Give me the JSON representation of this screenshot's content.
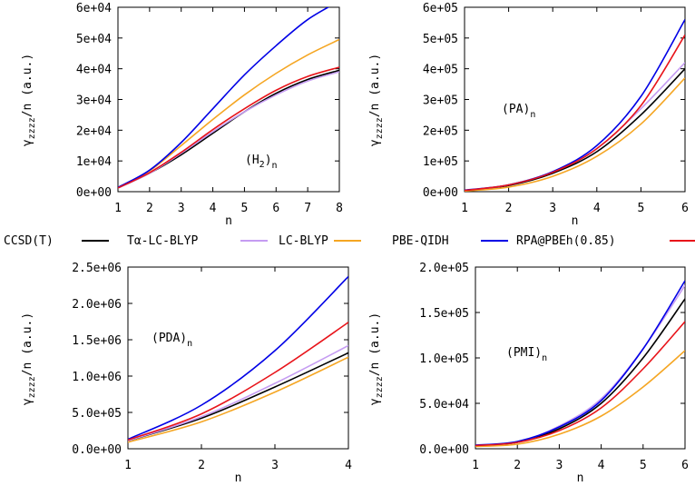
{
  "legend": [
    {
      "name": "CCSD(T)",
      "color": "#000000"
    },
    {
      "name": "Tα-LC-BLYP",
      "color": "#c59cf2"
    },
    {
      "name": "LC-BLYP",
      "color": "#f5a623"
    },
    {
      "name": "PBE-QIDH",
      "color": "#0000e6"
    },
    {
      "name": "RPA@PBEh(0.85)",
      "color": "#e8141a"
    }
  ],
  "chart_data": [
    {
      "type": "line",
      "label_main": "(H",
      "label_sub2": "2",
      "label_close": ")",
      "label_sub": "n",
      "xlabel": "n",
      "ylabel_main": "γ",
      "ylabel_sub": "zzzz",
      "ylabel_rest": "/n (a.u.)",
      "xlim": [
        1,
        8
      ],
      "ylim": [
        0,
        60000
      ],
      "xticks": [
        "1",
        "2",
        "3",
        "4",
        "5",
        "6",
        "7",
        "8"
      ],
      "yticks": [
        "0e+00",
        "1e+04",
        "2e+04",
        "3e+04",
        "4e+04",
        "5e+04",
        "6e+04"
      ],
      "x": [
        1,
        2,
        3,
        4,
        5,
        6,
        7,
        8
      ],
      "series": [
        {
          "name": "CCSD(T)",
          "color": "#000000",
          "values": [
            1200,
            6000,
            12000,
            19000,
            26000,
            32000,
            36500,
            39500
          ]
        },
        {
          "name": "Tα-LC-BLYP",
          "color": "#c59cf2",
          "values": [
            1200,
            6000,
            12500,
            19500,
            26000,
            31500,
            36000,
            39000
          ]
        },
        {
          "name": "LC-BLYP",
          "color": "#f5a623",
          "values": [
            1400,
            6800,
            15000,
            23500,
            31500,
            38500,
            44500,
            49500
          ]
        },
        {
          "name": "PBE-QIDH",
          "color": "#0000e6",
          "values": [
            1400,
            7000,
            16000,
            27000,
            38000,
            47500,
            56000,
            62000
          ]
        },
        {
          "name": "RPA@PBEh(0.85)",
          "color": "#e8141a",
          "values": [
            1200,
            6200,
            12800,
            20200,
            27000,
            33000,
            37500,
            40500
          ]
        }
      ]
    },
    {
      "type": "line",
      "label_main": "(PA)",
      "label_sub": "n",
      "xlabel": "n",
      "ylabel_main": "γ",
      "ylabel_sub": "zzzz",
      "ylabel_rest": "/n (a.u.)",
      "xlim": [
        1,
        6
      ],
      "ylim": [
        0,
        600000
      ],
      "xticks": [
        "1",
        "2",
        "3",
        "4",
        "5",
        "6"
      ],
      "yticks": [
        "0e+00",
        "1e+05",
        "2e+05",
        "3e+05",
        "4e+05",
        "5e+05",
        "6e+05"
      ],
      "x": [
        1,
        2,
        3,
        4,
        5,
        6
      ],
      "series": [
        {
          "name": "CCSD(T)",
          "color": "#000000",
          "values": [
            3000,
            20000,
            60000,
            130000,
            250000,
            400000
          ]
        },
        {
          "name": "Tα-LC-BLYP",
          "color": "#c59cf2",
          "values": [
            3000,
            22000,
            65000,
            140000,
            270000,
            420000
          ]
        },
        {
          "name": "LC-BLYP",
          "color": "#f5a623",
          "values": [
            2000,
            15000,
            50000,
            115000,
            220000,
            370000
          ]
        },
        {
          "name": "PBE-QIDH",
          "color": "#0000e6",
          "values": [
            5000,
            22000,
            65000,
            150000,
            310000,
            560000
          ]
        },
        {
          "name": "RPA@PBEh(0.85)",
          "color": "#e8141a",
          "values": [
            4000,
            22000,
            63000,
            140000,
            280000,
            510000
          ]
        }
      ]
    },
    {
      "type": "line",
      "label_main": "(PDA)",
      "label_sub": "n",
      "xlabel": "n",
      "ylabel_main": "γ",
      "ylabel_sub": "zzzz",
      "ylabel_rest": "/n (a.u.)",
      "xlim": [
        1,
        4
      ],
      "ylim": [
        0,
        2500000
      ],
      "xticks": [
        "1",
        "2",
        "3",
        "4"
      ],
      "yticks": [
        "0.0e+00",
        "5.0e+05",
        "1.0e+06",
        "1.5e+06",
        "2.0e+06",
        "2.5e+06"
      ],
      "x": [
        1,
        2,
        3,
        4
      ],
      "series": [
        {
          "name": "CCSD(T)",
          "color": "#000000",
          "values": [
            110000,
            420000,
            850000,
            1320000
          ]
        },
        {
          "name": "Tα-LC-BLYP",
          "color": "#c59cf2",
          "values": [
            110000,
            440000,
            900000,
            1420000
          ]
        },
        {
          "name": "LC-BLYP",
          "color": "#f5a623",
          "values": [
            90000,
            370000,
            780000,
            1260000
          ]
        },
        {
          "name": "PBE-QIDH",
          "color": "#0000e6",
          "values": [
            130000,
            600000,
            1350000,
            2370000
          ]
        },
        {
          "name": "RPA@PBEh(0.85)",
          "color": "#e8141a",
          "values": [
            120000,
            480000,
            1050000,
            1740000
          ]
        }
      ]
    },
    {
      "type": "line",
      "label_main": "(PMI)",
      "label_sub": "n",
      "xlabel": "n",
      "ylabel_main": "γ",
      "ylabel_sub": "zzzz",
      "ylabel_rest": "/n (a.u.)",
      "xlim": [
        1,
        6
      ],
      "ylim": [
        0,
        200000
      ],
      "xticks": [
        "1",
        "2",
        "3",
        "4",
        "5",
        "6"
      ],
      "yticks": [
        "0.0e+00",
        "5.0e+04",
        "1.0e+05",
        "1.5e+05",
        "2.0e+05"
      ],
      "x": [
        1,
        2,
        3,
        4,
        5,
        6
      ],
      "series": [
        {
          "name": "CCSD(T)",
          "color": "#000000",
          "values": [
            3500,
            7000,
            22000,
            50000,
            100000,
            165000
          ]
        },
        {
          "name": "Tα-LC-BLYP",
          "color": "#c59cf2",
          "values": [
            3500,
            7500,
            25000,
            55000,
            110000,
            180000
          ]
        },
        {
          "name": "LC-BLYP",
          "color": "#f5a623",
          "values": [
            2500,
            5000,
            16000,
            36000,
            68000,
            108000
          ]
        },
        {
          "name": "PBE-QIDH",
          "color": "#0000e6",
          "values": [
            4000,
            8000,
            24000,
            53000,
            110000,
            185000
          ]
        },
        {
          "name": "RPA@PBEh(0.85)",
          "color": "#e8141a",
          "values": [
            3500,
            7000,
            20000,
            45000,
            88000,
            140000
          ]
        }
      ]
    }
  ]
}
